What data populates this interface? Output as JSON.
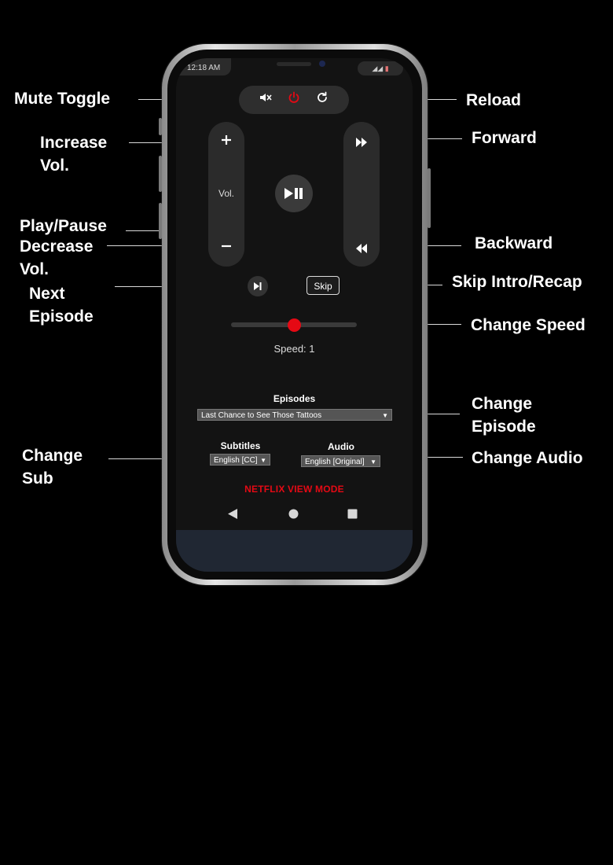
{
  "annotations": {
    "mute_toggle": "Mute Toggle",
    "reload": "Reload",
    "increase_vol": "Increase\nVol.",
    "forward": "Forward",
    "play_pause": "Play/Pause",
    "backward": "Backward",
    "decrease_vol": "Decrease\nVol.",
    "next_episode": "Next\nEpisode",
    "skip_intro": "Skip Intro/Recap",
    "change_speed": "Change Speed",
    "change_episode": "Change\nEpisode",
    "change_sub": "Change\nSub",
    "change_audio": "Change Audio"
  },
  "status_bar": {
    "time": "12:18 AM"
  },
  "icons": {
    "mute": "speaker-mute-icon",
    "power": "power-icon",
    "reload": "reload-icon",
    "plus": "plus-icon",
    "minus": "minus-icon",
    "fast_forward": "fast-forward-icon",
    "rewind": "rewind-icon",
    "play_pause": "play-pause-icon",
    "next_episode": "skip-next-icon"
  },
  "remote": {
    "vol_label": "Vol.",
    "skip_label": "Skip",
    "speed_text": "Speed: 1",
    "speed_fraction": 0.5,
    "episodes_title": "Episodes",
    "episode_selected": "Last Chance to See Those Tattoos",
    "subtitles_title": "Subtitles",
    "subtitles_selected": "English [CC]",
    "audio_title": "Audio",
    "audio_selected": "English [Original]",
    "mode_label": "NETFLIX VIEW MODE"
  },
  "colors": {
    "accent": "#e50914",
    "background": "#000000",
    "screen": "#131313"
  }
}
